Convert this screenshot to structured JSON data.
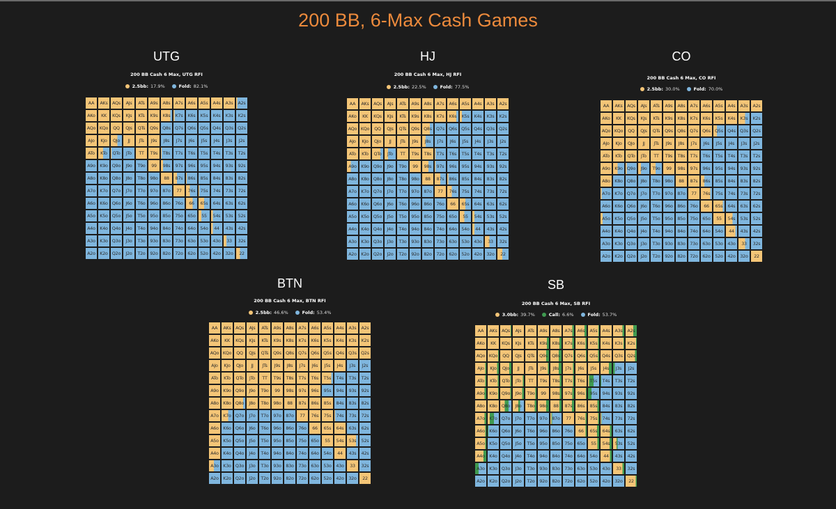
{
  "title": "200 BB, 6-Max Cash Games",
  "colors": {
    "raise": "#f4c577",
    "call": "#3f9a50",
    "fold": "#7fb6de",
    "title": "#ec8a3c",
    "background": "#1c1c1c"
  },
  "hands": [
    [
      "AA",
      "AKs",
      "AQs",
      "AJs",
      "ATs",
      "A9s",
      "A8s",
      "A7s",
      "A6s",
      "A5s",
      "A4s",
      "A3s",
      "A2s"
    ],
    [
      "AKo",
      "KK",
      "KQs",
      "KJs",
      "KTs",
      "K9s",
      "K8s",
      "K7s",
      "K6s",
      "K5s",
      "K4s",
      "K3s",
      "K2s"
    ],
    [
      "AQo",
      "KQo",
      "QQ",
      "QJs",
      "QTs",
      "Q9s",
      "Q8s",
      "Q7s",
      "Q6s",
      "Q5s",
      "Q4s",
      "Q3s",
      "Q2s"
    ],
    [
      "AJo",
      "KJo",
      "QJo",
      "JJ",
      "JTs",
      "J9s",
      "J8s",
      "J7s",
      "J6s",
      "J5s",
      "J4s",
      "J3s",
      "J2s"
    ],
    [
      "ATo",
      "KTo",
      "QTo",
      "JTo",
      "TT",
      "T9s",
      "T8s",
      "T7s",
      "T6s",
      "T5s",
      "T4s",
      "T3s",
      "T2s"
    ],
    [
      "A9o",
      "K9o",
      "Q9o",
      "J9o",
      "T9o",
      "99",
      "98s",
      "97s",
      "96s",
      "95s",
      "94s",
      "93s",
      "92s"
    ],
    [
      "A8o",
      "K8o",
      "Q8o",
      "J8o",
      "T8o",
      "98o",
      "88",
      "87s",
      "86s",
      "85s",
      "84s",
      "83s",
      "82s"
    ],
    [
      "A7o",
      "K7o",
      "Q7o",
      "J7o",
      "T7o",
      "97o",
      "87o",
      "77",
      "76s",
      "75s",
      "74s",
      "73s",
      "72s"
    ],
    [
      "A6o",
      "K6o",
      "Q6o",
      "J6o",
      "T6o",
      "96o",
      "86o",
      "76o",
      "66",
      "65s",
      "64s",
      "63s",
      "62s"
    ],
    [
      "A5o",
      "K5o",
      "Q5o",
      "J5o",
      "T5o",
      "95o",
      "85o",
      "75o",
      "65o",
      "55",
      "54s",
      "53s",
      "52s"
    ],
    [
      "A4o",
      "K4o",
      "Q4o",
      "J4o",
      "T4o",
      "94o",
      "84o",
      "74o",
      "64o",
      "54o",
      "44",
      "43s",
      "42s"
    ],
    [
      "A3o",
      "K3o",
      "Q3o",
      "J3o",
      "T3o",
      "93o",
      "83o",
      "73o",
      "63o",
      "53o",
      "43o",
      "33",
      "32s"
    ],
    [
      "A2o",
      "K2o",
      "Q2o",
      "J2o",
      "T2o",
      "92o",
      "82o",
      "72o",
      "62o",
      "52o",
      "42o",
      "32o",
      "22"
    ]
  ],
  "chart_data": [
    {
      "type": "heatmap",
      "title": "UTG",
      "subtitle": "200 BB Cash 6 Max, UTG RFI",
      "legend": [
        {
          "label": "2.5bb:",
          "value": "17.9%",
          "color": "#f4c577"
        },
        {
          "label": "Fold:",
          "value": "82.1%",
          "color": "#7fb6de"
        }
      ],
      "raise": [
        [
          1,
          1,
          1,
          1,
          1,
          1,
          1,
          1,
          1,
          1,
          1,
          1,
          0.1
        ],
        [
          1,
          1,
          1,
          1,
          1,
          1,
          0.85,
          0.1,
          0,
          0,
          0,
          0,
          0
        ],
        [
          1,
          1,
          1,
          1,
          1,
          1,
          0,
          0,
          0,
          0,
          0,
          0,
          0
        ],
        [
          1,
          1,
          0.6,
          1,
          1,
          1,
          0,
          0,
          0,
          0,
          0,
          0,
          0
        ],
        [
          1,
          0.45,
          0.05,
          0,
          1,
          1,
          0.05,
          0,
          0,
          0,
          0,
          0,
          0
        ],
        [
          0,
          0,
          0,
          0,
          0,
          1,
          0.2,
          0,
          0,
          0,
          0,
          0,
          0
        ],
        [
          0,
          0,
          0,
          0,
          0,
          0,
          1,
          0.3,
          0.05,
          0,
          0,
          0,
          0
        ],
        [
          0,
          0,
          0,
          0,
          0,
          0,
          0,
          1,
          0.35,
          0.05,
          0,
          0,
          0
        ],
        [
          0,
          0,
          0,
          0,
          0,
          0,
          0,
          0,
          0.6,
          0.5,
          0,
          0,
          0
        ],
        [
          0,
          0,
          0,
          0,
          0,
          0,
          0,
          0,
          0,
          0.25,
          0.15,
          0,
          0
        ],
        [
          0,
          0,
          0,
          0,
          0,
          0,
          0,
          0,
          0,
          0,
          0.15,
          0,
          0
        ],
        [
          0,
          0,
          0,
          0,
          0,
          0,
          0,
          0,
          0,
          0,
          0,
          0.25,
          0
        ],
        [
          0,
          0,
          0,
          0,
          0,
          0,
          0,
          0,
          0,
          0,
          0,
          0,
          0.35
        ]
      ]
    },
    {
      "type": "heatmap",
      "title": "HJ",
      "subtitle": "200 BB Cash 6 Max, HJ RFI",
      "legend": [
        {
          "label": "2.5bb:",
          "value": "22.5%",
          "color": "#f4c577"
        },
        {
          "label": "Fold:",
          "value": "77.5%",
          "color": "#7fb6de"
        }
      ],
      "raise": [
        [
          1,
          1,
          1,
          1,
          1,
          1,
          1,
          1,
          1,
          1,
          1,
          1,
          1
        ],
        [
          1,
          1,
          1,
          1,
          1,
          1,
          1,
          1,
          0.8,
          0.2,
          0,
          0,
          0
        ],
        [
          1,
          1,
          1,
          1,
          1,
          1,
          0.7,
          0,
          0,
          0,
          0,
          0,
          0
        ],
        [
          1,
          1,
          1,
          1,
          1,
          1,
          0.3,
          0,
          0,
          0,
          0,
          0,
          0
        ],
        [
          1,
          1,
          0.75,
          0.3,
          1,
          1,
          1,
          0.05,
          0,
          0,
          0,
          0,
          0
        ],
        [
          0.35,
          0,
          0,
          0,
          0,
          1,
          0.55,
          0.05,
          0,
          0,
          0,
          0,
          0
        ],
        [
          0,
          0,
          0,
          0,
          0,
          0,
          1,
          0.5,
          0.1,
          0,
          0,
          0,
          0
        ],
        [
          0,
          0,
          0,
          0,
          0,
          0,
          0,
          1,
          0.4,
          0,
          0,
          0,
          0
        ],
        [
          0,
          0,
          0,
          0,
          0,
          0,
          0,
          0,
          1,
          0.5,
          0,
          0,
          0
        ],
        [
          0,
          0,
          0,
          0,
          0,
          0,
          0,
          0,
          0,
          0.4,
          0.2,
          0,
          0
        ],
        [
          0,
          0,
          0,
          0,
          0,
          0,
          0,
          0,
          0,
          0,
          0.2,
          0,
          0
        ],
        [
          0,
          0,
          0,
          0,
          0,
          0,
          0,
          0,
          0,
          0,
          0,
          0.4,
          0
        ],
        [
          0,
          0,
          0,
          0,
          0,
          0,
          0,
          0,
          0,
          0,
          0,
          0,
          0.45
        ]
      ]
    },
    {
      "type": "heatmap",
      "title": "CO",
      "subtitle": "200 BB Cash 6 Max, CO RFI",
      "legend": [
        {
          "label": "2.5bb:",
          "value": "30.0%",
          "color": "#f4c577"
        },
        {
          "label": "Fold:",
          "value": "70.0%",
          "color": "#7fb6de"
        }
      ],
      "raise": [
        [
          1,
          1,
          1,
          1,
          1,
          1,
          1,
          1,
          1,
          1,
          1,
          1,
          1
        ],
        [
          1,
          1,
          1,
          1,
          1,
          1,
          1,
          1,
          1,
          1,
          1,
          0.6,
          0
        ],
        [
          1,
          1,
          1,
          1,
          1,
          1,
          1,
          1,
          1,
          0.3,
          0,
          0,
          0
        ],
        [
          1,
          1,
          1,
          1,
          1,
          1,
          1,
          1,
          0,
          0,
          0,
          0,
          0
        ],
        [
          1,
          1,
          1,
          1,
          1,
          1,
          1,
          1,
          0,
          0,
          0,
          0,
          0
        ],
        [
          1,
          0.4,
          0.1,
          0.25,
          0.45,
          1,
          1,
          1,
          0,
          0,
          0,
          0,
          0
        ],
        [
          1,
          0,
          0,
          0,
          0,
          0,
          1,
          1,
          0.3,
          0,
          0,
          0,
          0
        ],
        [
          0.1,
          0,
          0,
          0,
          0,
          0,
          0,
          1,
          0.85,
          0,
          0,
          0,
          0
        ],
        [
          0,
          0,
          0,
          0,
          0,
          0,
          0,
          0,
          1,
          0.85,
          0,
          0,
          0
        ],
        [
          0.2,
          0,
          0,
          0,
          0,
          0,
          0,
          0,
          0,
          1,
          0.6,
          0,
          0
        ],
        [
          0,
          0,
          0,
          0,
          0,
          0,
          0,
          0,
          0,
          0,
          0.85,
          0,
          0
        ],
        [
          0,
          0,
          0,
          0,
          0,
          0,
          0,
          0,
          0,
          0,
          0,
          0.6,
          0
        ],
        [
          0,
          0,
          0,
          0,
          0,
          0,
          0,
          0,
          0,
          0,
          0,
          0,
          1
        ]
      ]
    },
    {
      "type": "heatmap",
      "title": "BTN",
      "subtitle": "200 BB Cash 6 Max, BTN RFI",
      "legend": [
        {
          "label": "2.5bb:",
          "value": "46.6%",
          "color": "#f4c577"
        },
        {
          "label": "Fold:",
          "value": "53.4%",
          "color": "#7fb6de"
        }
      ],
      "raise": [
        [
          1,
          1,
          1,
          1,
          1,
          1,
          1,
          1,
          1,
          1,
          1,
          1,
          1
        ],
        [
          1,
          1,
          1,
          1,
          1,
          1,
          1,
          1,
          1,
          1,
          1,
          1,
          1
        ],
        [
          1,
          1,
          1,
          1,
          1,
          1,
          1,
          1,
          1,
          1,
          1,
          1,
          1
        ],
        [
          1,
          1,
          1,
          1,
          1,
          1,
          1,
          1,
          1,
          1,
          1,
          0,
          0
        ],
        [
          1,
          1,
          1,
          1,
          1,
          1,
          1,
          1,
          1,
          0.85,
          0,
          0,
          0
        ],
        [
          1,
          1,
          1,
          1,
          1,
          1,
          1,
          1,
          1,
          0,
          0,
          0,
          0
        ],
        [
          1,
          1,
          0.8,
          1,
          1,
          1,
          1,
          1,
          1,
          1,
          0,
          0,
          0
        ],
        [
          1,
          0.6,
          0,
          0,
          0,
          0,
          0,
          1,
          1,
          1,
          0.05,
          0,
          0
        ],
        [
          1,
          0,
          0,
          0,
          0,
          0,
          0,
          0,
          1,
          1,
          1,
          0,
          0
        ],
        [
          1,
          0,
          0,
          0,
          0,
          0,
          0,
          0,
          0,
          1,
          1,
          0.8,
          0
        ],
        [
          1,
          0,
          0,
          0,
          0,
          0,
          0,
          0,
          0,
          0,
          1,
          0,
          0
        ],
        [
          0.45,
          0,
          0,
          0,
          0,
          0,
          0,
          0,
          0,
          0,
          0,
          1,
          0
        ],
        [
          0,
          0,
          0,
          0,
          0,
          0,
          0,
          0,
          0,
          0,
          0,
          0,
          1
        ]
      ]
    },
    {
      "type": "heatmap",
      "title": "SB",
      "subtitle": "200 BB Cash 6 Max, SB RFI",
      "legend": [
        {
          "label": "3.0bb:",
          "value": "39.7%",
          "color": "#f4c577"
        },
        {
          "label": "Call:",
          "value": "6.6%",
          "color": "#3f9a50"
        },
        {
          "label": "Fold:",
          "value": "53.7%",
          "color": "#7fb6de"
        }
      ],
      "raise": [
        [
          1,
          1,
          0.95,
          1,
          1,
          1,
          1,
          0.85,
          0.8,
          0.95,
          1,
          0.85,
          0.7
        ],
        [
          1,
          1,
          1,
          1,
          1,
          0.8,
          0.8,
          0.85,
          0.9,
          0.9,
          1,
          0.95,
          0.95
        ],
        [
          1,
          0.95,
          1,
          1,
          1,
          0.75,
          0.75,
          0.95,
          0.95,
          0.9,
          1,
          1,
          0.85
        ],
        [
          0.9,
          0.85,
          0.8,
          1,
          1,
          0.9,
          0.75,
          0.9,
          1,
          1,
          0.75,
          0,
          0
        ],
        [
          0.9,
          0.9,
          0.9,
          0.9,
          1,
          1,
          0.85,
          0.9,
          1,
          0.1,
          0,
          0,
          0
        ],
        [
          0.85,
          0.95,
          0.9,
          0.85,
          0.9,
          1,
          0.85,
          0.85,
          0.95,
          0,
          0,
          0,
          0
        ],
        [
          1,
          1,
          0.4,
          0.5,
          0.85,
          0.75,
          0.8,
          0.8,
          1,
          0.85,
          0,
          0,
          0
        ],
        [
          0.85,
          0.2,
          0,
          0,
          0,
          0,
          0.1,
          1,
          0.9,
          0.9,
          0.05,
          0,
          0
        ],
        [
          0.9,
          0,
          0,
          0,
          0,
          0,
          0,
          0,
          0.9,
          0.8,
          0.85,
          0,
          0
        ],
        [
          0.9,
          0,
          0,
          0,
          0,
          0,
          0,
          0,
          0,
          0.85,
          0.8,
          0.3,
          0
        ],
        [
          0.75,
          0,
          0,
          0,
          0,
          0,
          0,
          0,
          0,
          0,
          0.85,
          0,
          0
        ],
        [
          0,
          0,
          0,
          0,
          0,
          0,
          0,
          0,
          0,
          0,
          0,
          0.85,
          0
        ],
        [
          0,
          0,
          0,
          0,
          0,
          0,
          0,
          0,
          0,
          0,
          0,
          0,
          0.9
        ]
      ],
      "call": [
        [
          0,
          0,
          0.05,
          0,
          0,
          0,
          0,
          0.15,
          0.2,
          0.05,
          0,
          0.15,
          0.3
        ],
        [
          0,
          0,
          0,
          0,
          0,
          0.2,
          0.2,
          0.15,
          0.1,
          0.1,
          0,
          0.05,
          0.05
        ],
        [
          0,
          0.05,
          0,
          0,
          0,
          0.25,
          0.25,
          0.05,
          0.05,
          0.1,
          0,
          0,
          0.15
        ],
        [
          0.1,
          0.15,
          0.2,
          0,
          0,
          0.1,
          0.25,
          0.1,
          0,
          0,
          0.25,
          0.15,
          0
        ],
        [
          0.1,
          0.1,
          0.1,
          0.1,
          0,
          0,
          0.15,
          0.1,
          0,
          0.4,
          0.05,
          0,
          0
        ],
        [
          0.15,
          0.05,
          0.1,
          0.15,
          0.1,
          0,
          0.15,
          0.15,
          0.05,
          0.3,
          0,
          0,
          0
        ],
        [
          0,
          0,
          0.35,
          0.15,
          0.15,
          0.25,
          0.2,
          0.2,
          0,
          0.15,
          0,
          0,
          0
        ],
        [
          0.15,
          0.35,
          0,
          0,
          0,
          0,
          0.05,
          0,
          0.1,
          0.1,
          0.05,
          0,
          0
        ],
        [
          0.1,
          0.05,
          0,
          0,
          0,
          0,
          0,
          0,
          0.1,
          0.2,
          0.15,
          0,
          0
        ],
        [
          0.1,
          0,
          0,
          0,
          0,
          0,
          0,
          0,
          0,
          0.15,
          0.2,
          0.1,
          0
        ],
        [
          0.25,
          0,
          0,
          0,
          0,
          0,
          0,
          0,
          0,
          0,
          0.15,
          0,
          0
        ],
        [
          0.3,
          0,
          0,
          0,
          0,
          0,
          0,
          0,
          0,
          0,
          0,
          0.15,
          0
        ],
        [
          0,
          0,
          0,
          0,
          0,
          0,
          0,
          0,
          0,
          0,
          0,
          0,
          0.1
        ]
      ]
    }
  ]
}
